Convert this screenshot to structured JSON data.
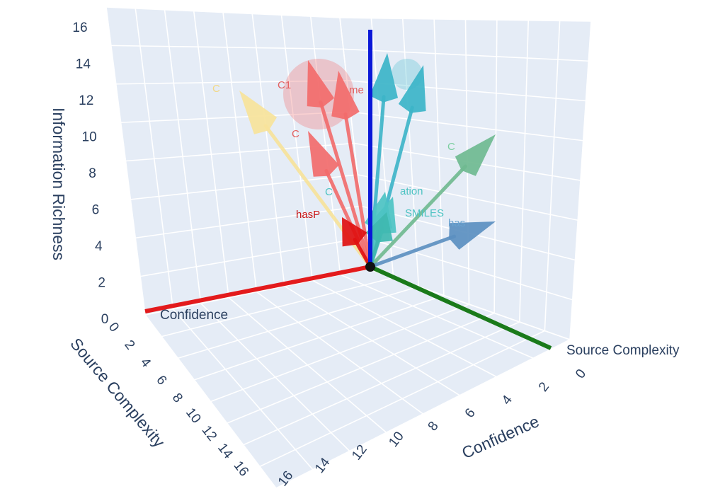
{
  "chart_data": {
    "type": "3d-vector-plot",
    "title": "",
    "axes": {
      "x": {
        "title": "Source Complexity",
        "range": [
          0,
          16
        ],
        "ticks": [
          "0",
          "2",
          "4",
          "6",
          "8",
          "10",
          "12",
          "14",
          "16"
        ]
      },
      "y": {
        "title": "Confidence",
        "range": [
          0,
          16
        ],
        "ticks": [
          "0",
          "2",
          "4",
          "6",
          "8",
          "10",
          "12",
          "14",
          "16"
        ]
      },
      "z": {
        "title": "Information Richness",
        "range": [
          0,
          16
        ],
        "ticks": [
          "0",
          "2",
          "4",
          "6",
          "8",
          "10",
          "12",
          "14",
          "16"
        ]
      }
    },
    "axis_line_labels": {
      "confidence": "Confidence",
      "source_complexity": "Source Complexity"
    },
    "axis_line_colors": {
      "confidence": "#e31a1c",
      "source_complexity": "#1a7a1a",
      "information_richness": "#0a18d8"
    },
    "grid": true,
    "background": "#e5ecf6",
    "vectors": [
      {
        "label": "C",
        "color": "#f7e39a",
        "label_color": "#f2d886"
      },
      {
        "label": "C1",
        "color": "#f26b6b",
        "label_color": "#e35f5f"
      },
      {
        "label": "me",
        "color": "#f26b6b",
        "label_color": "#e35f5f"
      },
      {
        "label": "C",
        "color": "#f26b6b",
        "label_color": "#e35f5f"
      },
      {
        "label": "",
        "color": "#3cb4c8",
        "label_color": "#3cb4c8"
      },
      {
        "label": "",
        "color": "#3cb4c8",
        "label_color": "#3cb4c8"
      },
      {
        "label": "C",
        "color": "#6fba90",
        "label_color": "#7ccfa0"
      },
      {
        "label": "C",
        "color": "#4dc3c3",
        "label_color": "#4dc3c3"
      },
      {
        "label": "ation",
        "color": "#4dc3c3",
        "label_color": "#4dc3c3"
      },
      {
        "label": "SMILES",
        "color": "#3fb8b0",
        "label_color": "#4dc3c3"
      },
      {
        "label": "hasP",
        "color": "#e01010",
        "label_color": "#c81414"
      },
      {
        "label": "has",
        "color": "#5b8fc0",
        "label_color": "#6aa3d0"
      }
    ]
  }
}
